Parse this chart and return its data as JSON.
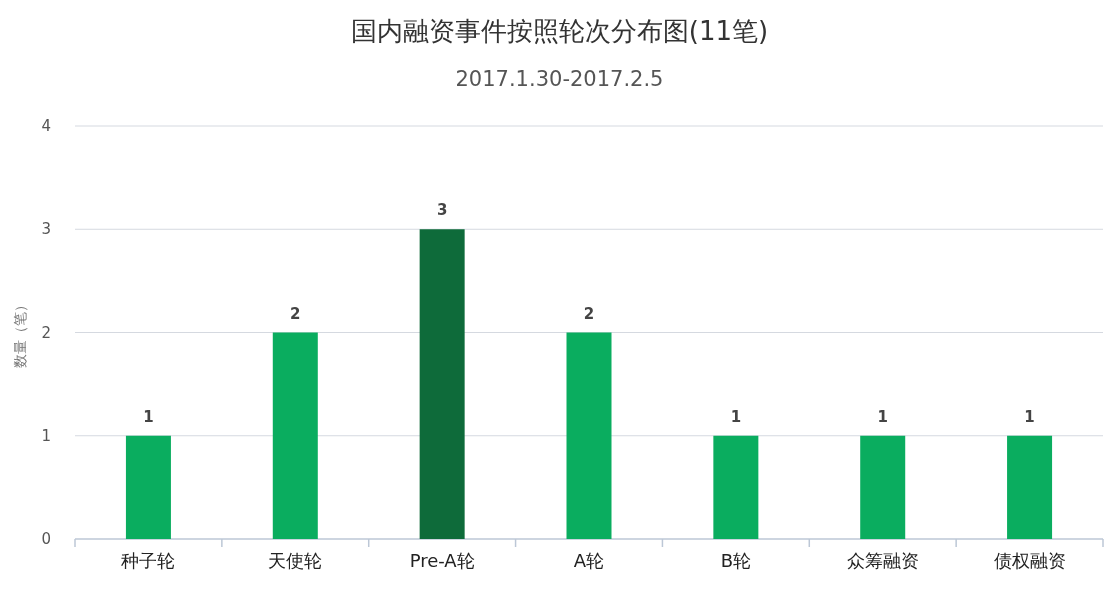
{
  "chart_data": {
    "type": "bar",
    "title": "国内融资事件按照轮次分布图(11笔)",
    "subtitle": "2017.1.30-2017.2.5",
    "ylabel": "数量（笔）",
    "categories": [
      "种子轮",
      "天使轮",
      "Pre-A轮",
      "A轮",
      "B轮",
      "众筹融资",
      "债权融资"
    ],
    "values": [
      1,
      2,
      3,
      2,
      1,
      1,
      1
    ],
    "colors": [
      "#0aad5f",
      "#0aad5f",
      "#0e6b3a",
      "#0aad5f",
      "#0aad5f",
      "#0aad5f",
      "#0aad5f"
    ],
    "ylim": [
      0,
      4
    ],
    "yticks": [
      0,
      1,
      2,
      3,
      4
    ],
    "grid": "y",
    "data_labels": true
  }
}
